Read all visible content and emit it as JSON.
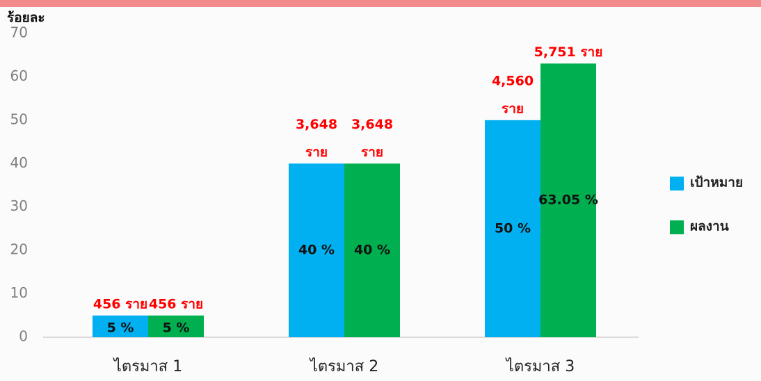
{
  "chart_data": {
    "type": "bar",
    "y_label": "ร้อยละ",
    "categories": [
      "ไตรมาส 1",
      "ไตรมาส 2",
      "ไตรมาส 3"
    ],
    "series": [
      {
        "name": "เป้าหมาย",
        "color": "#00b0f0",
        "values": [
          5,
          40,
          50
        ],
        "value_labels": [
          "5 %",
          "40 %",
          "50 %"
        ],
        "annotations": [
          [
            "456  ราย"
          ],
          [
            "3,648",
            "ราย"
          ],
          [
            "4,560",
            "ราย"
          ]
        ]
      },
      {
        "name": "ผลงาน",
        "color": "#00b050",
        "values": [
          5,
          40,
          63.05
        ],
        "value_labels": [
          "5 %",
          "40 %",
          "63.05 %"
        ],
        "annotations": [
          [
            "456 ราย"
          ],
          [
            "3,648",
            "ราย"
          ],
          [
            "5,751  ราย"
          ]
        ]
      }
    ],
    "ylim": [
      0,
      70
    ],
    "yticks": [
      0,
      10,
      20,
      30,
      40,
      50,
      60,
      70
    ],
    "grid": false,
    "legend": "right"
  }
}
